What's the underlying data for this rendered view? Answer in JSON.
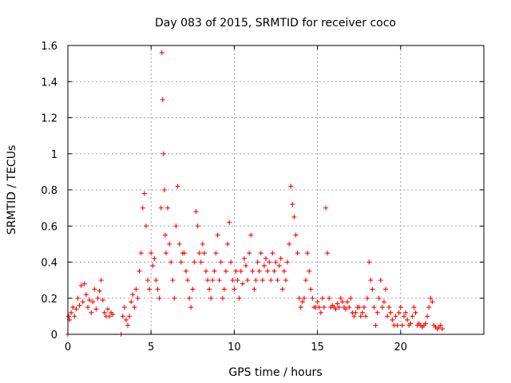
{
  "chart_data": {
    "type": "scatter",
    "title": "Day 083 of 2015, SRMTID for receiver coco",
    "xlabel": "GPS time / hours",
    "ylabel": "SRMTID / TECUs",
    "xlim": [
      0,
      25
    ],
    "ylim": [
      0,
      1.6
    ],
    "xticks": [
      0,
      5,
      10,
      15,
      20
    ],
    "xtick_labels": [
      "0",
      "5",
      "10",
      "15",
      "20"
    ],
    "yticks": [
      0,
      0.2,
      0.4,
      0.6,
      0.8,
      1,
      1.2,
      1.4,
      1.6
    ],
    "ytick_labels": [
      "0",
      "0.2",
      "0.4",
      "0.6",
      "0.8",
      "1",
      "1.2",
      "1.4",
      "1.6"
    ],
    "grid": true,
    "marker": "+",
    "series": [
      {
        "name": "SRMTID",
        "color": "#ff0000",
        "x": [
          0.0,
          0.05,
          0.1,
          0.2,
          0.3,
          0.4,
          0.5,
          0.6,
          0.7,
          0.8,
          0.9,
          1.0,
          1.1,
          1.2,
          1.3,
          1.4,
          1.5,
          1.6,
          1.7,
          1.8,
          1.9,
          2.0,
          2.1,
          2.2,
          2.3,
          2.4,
          2.5,
          2.6,
          2.7,
          3.2,
          3.3,
          3.4,
          3.5,
          3.6,
          3.7,
          3.8,
          3.9,
          4.0,
          4.1,
          4.2,
          4.3,
          4.4,
          4.5,
          4.6,
          4.7,
          4.8,
          4.9,
          5.0,
          5.1,
          5.2,
          5.3,
          5.4,
          5.5,
          5.6,
          5.65,
          5.7,
          5.75,
          5.8,
          5.85,
          5.9,
          6.0,
          6.1,
          6.2,
          6.3,
          6.4,
          6.5,
          6.6,
          6.7,
          6.8,
          6.9,
          7.0,
          7.1,
          7.2,
          7.3,
          7.4,
          7.5,
          7.6,
          7.7,
          7.8,
          7.9,
          8.0,
          8.1,
          8.2,
          8.3,
          8.4,
          8.5,
          8.6,
          8.7,
          8.8,
          8.9,
          9.0,
          9.1,
          9.2,
          9.3,
          9.4,
          9.5,
          9.6,
          9.7,
          9.8,
          9.9,
          10.0,
          10.1,
          10.2,
          10.3,
          10.4,
          10.5,
          10.6,
          10.7,
          10.8,
          10.9,
          11.0,
          11.1,
          11.2,
          11.3,
          11.4,
          11.5,
          11.6,
          11.7,
          11.8,
          11.9,
          12.0,
          12.1,
          12.2,
          12.3,
          12.4,
          12.5,
          12.6,
          12.7,
          12.8,
          12.9,
          13.0,
          13.1,
          13.2,
          13.3,
          13.4,
          13.5,
          13.6,
          13.7,
          13.8,
          13.9,
          14.0,
          14.1,
          14.2,
          14.3,
          14.4,
          14.5,
          14.6,
          14.7,
          14.8,
          14.9,
          15.0,
          15.1,
          15.2,
          15.3,
          15.4,
          15.5,
          15.6,
          15.7,
          15.8,
          15.9,
          16.0,
          16.1,
          16.2,
          16.3,
          16.4,
          16.5,
          16.6,
          16.7,
          16.8,
          16.9,
          17.0,
          17.1,
          17.2,
          17.3,
          17.4,
          17.5,
          17.6,
          17.7,
          17.8,
          17.9,
          18.0,
          18.1,
          18.2,
          18.3,
          18.4,
          18.5,
          18.6,
          18.7,
          18.8,
          18.9,
          19.0,
          19.1,
          19.2,
          19.3,
          19.4,
          19.5,
          19.6,
          19.7,
          19.8,
          19.9,
          20.0,
          20.1,
          20.2,
          20.3,
          20.4,
          20.5,
          20.6,
          20.7,
          20.8,
          20.9,
          21.0,
          21.1,
          21.2,
          21.3,
          21.4,
          21.5,
          21.6,
          21.7,
          21.8,
          21.9,
          22.0,
          22.1,
          22.2,
          22.3,
          22.4,
          22.5
        ],
        "y": [
          0.0,
          0.1,
          0.08,
          0.12,
          0.15,
          0.1,
          0.14,
          0.2,
          0.16,
          0.27,
          0.18,
          0.28,
          0.22,
          0.15,
          0.19,
          0.12,
          0.18,
          0.25,
          0.14,
          0.2,
          0.24,
          0.3,
          0.19,
          0.12,
          0.1,
          0.14,
          0.1,
          0.12,
          0.11,
          0.0,
          0.1,
          0.15,
          0.08,
          0.05,
          0.1,
          0.18,
          0.22,
          0.15,
          0.25,
          0.2,
          0.35,
          0.45,
          0.7,
          0.78,
          0.6,
          0.3,
          0.25,
          0.45,
          0.38,
          0.42,
          0.3,
          0.25,
          0.2,
          0.7,
          1.56,
          1.3,
          1.0,
          0.8,
          0.55,
          0.45,
          0.7,
          0.5,
          0.4,
          0.3,
          0.2,
          0.6,
          0.82,
          0.5,
          0.4,
          0.45,
          0.45,
          0.35,
          0.3,
          0.2,
          0.15,
          0.25,
          0.4,
          0.68,
          0.6,
          0.45,
          0.4,
          0.5,
          0.45,
          0.35,
          0.3,
          0.25,
          0.2,
          0.3,
          0.35,
          0.45,
          0.55,
          0.3,
          0.4,
          0.2,
          0.25,
          0.35,
          0.5,
          0.62,
          0.4,
          0.3,
          0.25,
          0.35,
          0.3,
          0.2,
          0.35,
          0.28,
          0.42,
          0.38,
          0.3,
          0.45,
          0.55,
          0.35,
          0.25,
          0.3,
          0.4,
          0.35,
          0.45,
          0.3,
          0.38,
          0.42,
          0.35,
          0.4,
          0.3,
          0.45,
          0.35,
          0.4,
          0.3,
          0.38,
          0.42,
          0.25,
          0.35,
          0.3,
          0.4,
          0.5,
          0.82,
          0.72,
          0.65,
          0.55,
          0.45,
          0.2,
          0.15,
          0.18,
          0.2,
          0.3,
          0.45,
          0.35,
          0.25,
          0.2,
          0.15,
          0.15,
          0.18,
          0.15,
          0.12,
          0.2,
          0.15,
          0.7,
          0.45,
          0.2,
          0.15,
          0.16,
          0.15,
          0.14,
          0.17,
          0.15,
          0.2,
          0.18,
          0.15,
          0.14,
          0.18,
          0.15,
          0.2,
          0.12,
          0.1,
          0.12,
          0.15,
          0.15,
          0.1,
          0.12,
          0.15,
          0.1,
          0.2,
          0.4,
          0.3,
          0.25,
          0.15,
          0.05,
          0.12,
          0.2,
          0.3,
          0.15,
          0.18,
          0.25,
          0.1,
          0.15,
          0.12,
          0.08,
          0.05,
          0.1,
          0.05,
          0.12,
          0.15,
          0.05,
          0.1,
          0.12,
          0.08,
          0.05,
          0.06,
          0.1,
          0.15,
          0.12,
          0.05,
          0.06,
          0.05,
          0.04,
          0.05,
          0.06,
          0.1,
          0.15,
          0.2,
          0.18,
          0.05,
          0.04,
          0.03,
          0.04,
          0.05,
          0.03
        ]
      }
    ]
  }
}
